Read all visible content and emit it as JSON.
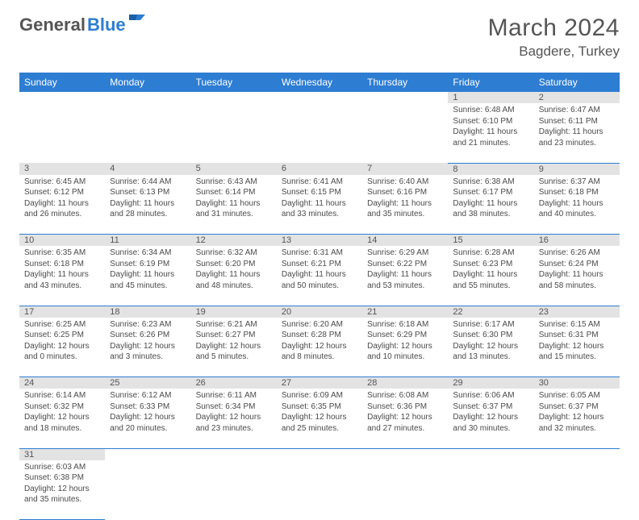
{
  "logo": {
    "text1": "General",
    "text2": "Blue"
  },
  "title": "March 2024",
  "subtitle": "Bagdere, Turkey",
  "colors": {
    "header_bg": "#2d7dd2",
    "header_text": "#ffffff",
    "daynum_bg": "#e3e3e3",
    "border": "#2d7dd2",
    "text": "#4a4a4a"
  },
  "weekdays": [
    "Sunday",
    "Monday",
    "Tuesday",
    "Wednesday",
    "Thursday",
    "Friday",
    "Saturday"
  ],
  "weeks": [
    [
      null,
      null,
      null,
      null,
      null,
      {
        "n": "1",
        "r": "Sunrise: 6:48 AM",
        "s": "Sunset: 6:10 PM",
        "d": "Daylight: 11 hours and 21 minutes."
      },
      {
        "n": "2",
        "r": "Sunrise: 6:47 AM",
        "s": "Sunset: 6:11 PM",
        "d": "Daylight: 11 hours and 23 minutes."
      }
    ],
    [
      {
        "n": "3",
        "r": "Sunrise: 6:45 AM",
        "s": "Sunset: 6:12 PM",
        "d": "Daylight: 11 hours and 26 minutes."
      },
      {
        "n": "4",
        "r": "Sunrise: 6:44 AM",
        "s": "Sunset: 6:13 PM",
        "d": "Daylight: 11 hours and 28 minutes."
      },
      {
        "n": "5",
        "r": "Sunrise: 6:43 AM",
        "s": "Sunset: 6:14 PM",
        "d": "Daylight: 11 hours and 31 minutes."
      },
      {
        "n": "6",
        "r": "Sunrise: 6:41 AM",
        "s": "Sunset: 6:15 PM",
        "d": "Daylight: 11 hours and 33 minutes."
      },
      {
        "n": "7",
        "r": "Sunrise: 6:40 AM",
        "s": "Sunset: 6:16 PM",
        "d": "Daylight: 11 hours and 35 minutes."
      },
      {
        "n": "8",
        "r": "Sunrise: 6:38 AM",
        "s": "Sunset: 6:17 PM",
        "d": "Daylight: 11 hours and 38 minutes."
      },
      {
        "n": "9",
        "r": "Sunrise: 6:37 AM",
        "s": "Sunset: 6:18 PM",
        "d": "Daylight: 11 hours and 40 minutes."
      }
    ],
    [
      {
        "n": "10",
        "r": "Sunrise: 6:35 AM",
        "s": "Sunset: 6:18 PM",
        "d": "Daylight: 11 hours and 43 minutes."
      },
      {
        "n": "11",
        "r": "Sunrise: 6:34 AM",
        "s": "Sunset: 6:19 PM",
        "d": "Daylight: 11 hours and 45 minutes."
      },
      {
        "n": "12",
        "r": "Sunrise: 6:32 AM",
        "s": "Sunset: 6:20 PM",
        "d": "Daylight: 11 hours and 48 minutes."
      },
      {
        "n": "13",
        "r": "Sunrise: 6:31 AM",
        "s": "Sunset: 6:21 PM",
        "d": "Daylight: 11 hours and 50 minutes."
      },
      {
        "n": "14",
        "r": "Sunrise: 6:29 AM",
        "s": "Sunset: 6:22 PM",
        "d": "Daylight: 11 hours and 53 minutes."
      },
      {
        "n": "15",
        "r": "Sunrise: 6:28 AM",
        "s": "Sunset: 6:23 PM",
        "d": "Daylight: 11 hours and 55 minutes."
      },
      {
        "n": "16",
        "r": "Sunrise: 6:26 AM",
        "s": "Sunset: 6:24 PM",
        "d": "Daylight: 11 hours and 58 minutes."
      }
    ],
    [
      {
        "n": "17",
        "r": "Sunrise: 6:25 AM",
        "s": "Sunset: 6:25 PM",
        "d": "Daylight: 12 hours and 0 minutes."
      },
      {
        "n": "18",
        "r": "Sunrise: 6:23 AM",
        "s": "Sunset: 6:26 PM",
        "d": "Daylight: 12 hours and 3 minutes."
      },
      {
        "n": "19",
        "r": "Sunrise: 6:21 AM",
        "s": "Sunset: 6:27 PM",
        "d": "Daylight: 12 hours and 5 minutes."
      },
      {
        "n": "20",
        "r": "Sunrise: 6:20 AM",
        "s": "Sunset: 6:28 PM",
        "d": "Daylight: 12 hours and 8 minutes."
      },
      {
        "n": "21",
        "r": "Sunrise: 6:18 AM",
        "s": "Sunset: 6:29 PM",
        "d": "Daylight: 12 hours and 10 minutes."
      },
      {
        "n": "22",
        "r": "Sunrise: 6:17 AM",
        "s": "Sunset: 6:30 PM",
        "d": "Daylight: 12 hours and 13 minutes."
      },
      {
        "n": "23",
        "r": "Sunrise: 6:15 AM",
        "s": "Sunset: 6:31 PM",
        "d": "Daylight: 12 hours and 15 minutes."
      }
    ],
    [
      {
        "n": "24",
        "r": "Sunrise: 6:14 AM",
        "s": "Sunset: 6:32 PM",
        "d": "Daylight: 12 hours and 18 minutes."
      },
      {
        "n": "25",
        "r": "Sunrise: 6:12 AM",
        "s": "Sunset: 6:33 PM",
        "d": "Daylight: 12 hours and 20 minutes."
      },
      {
        "n": "26",
        "r": "Sunrise: 6:11 AM",
        "s": "Sunset: 6:34 PM",
        "d": "Daylight: 12 hours and 23 minutes."
      },
      {
        "n": "27",
        "r": "Sunrise: 6:09 AM",
        "s": "Sunset: 6:35 PM",
        "d": "Daylight: 12 hours and 25 minutes."
      },
      {
        "n": "28",
        "r": "Sunrise: 6:08 AM",
        "s": "Sunset: 6:36 PM",
        "d": "Daylight: 12 hours and 27 minutes."
      },
      {
        "n": "29",
        "r": "Sunrise: 6:06 AM",
        "s": "Sunset: 6:37 PM",
        "d": "Daylight: 12 hours and 30 minutes."
      },
      {
        "n": "30",
        "r": "Sunrise: 6:05 AM",
        "s": "Sunset: 6:37 PM",
        "d": "Daylight: 12 hours and 32 minutes."
      }
    ],
    [
      {
        "n": "31",
        "r": "Sunrise: 6:03 AM",
        "s": "Sunset: 6:38 PM",
        "d": "Daylight: 12 hours and 35 minutes."
      },
      null,
      null,
      null,
      null,
      null,
      null
    ]
  ]
}
